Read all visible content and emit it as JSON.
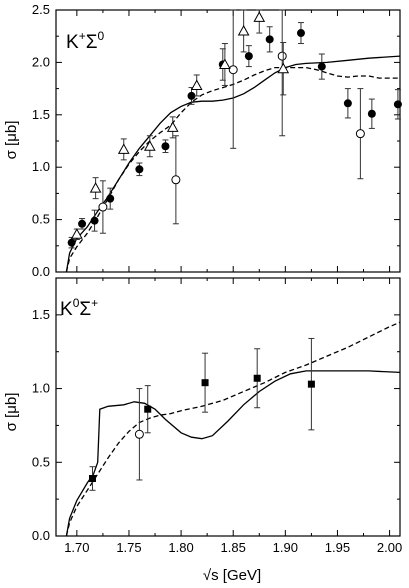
{
  "xlabel": "√s [GeV]",
  "chart_data": [
    {
      "type": "scatter",
      "title": "",
      "panel_label": {
        "base": "K",
        "sup1": "+",
        "mid": "Σ",
        "sup2": "0"
      },
      "xlabel": "√s [GeV]",
      "ylabel": "σ [μb]",
      "xlim": [
        1.68,
        2.01
      ],
      "ylim": [
        0.0,
        2.5
      ],
      "xticks": [
        "1.70",
        "1.75",
        "1.80",
        "1.85",
        "1.90",
        "1.95",
        "2.00"
      ],
      "yticks": [
        "0.0",
        "0.5",
        "1.0",
        "1.5",
        "2.0",
        "2.5"
      ],
      "ytick_values": [
        0.0,
        0.5,
        1.0,
        1.5,
        2.0,
        2.5
      ],
      "series": [
        {
          "marker": "filled-circle",
          "points": [
            {
              "x": 1.695,
              "y": 0.28,
              "err": 0.05
            },
            {
              "x": 1.705,
              "y": 0.46,
              "err": 0.05
            },
            {
              "x": 1.717,
              "y": 0.49,
              "err": 0.1
            },
            {
              "x": 1.732,
              "y": 0.7,
              "err": 0.1
            },
            {
              "x": 1.76,
              "y": 0.98,
              "err": 0.06
            },
            {
              "x": 1.785,
              "y": 1.2,
              "err": 0.06
            },
            {
              "x": 1.81,
              "y": 1.68,
              "err": 0.08
            },
            {
              "x": 1.84,
              "y": 1.98,
              "err": 0.15
            },
            {
              "x": 1.865,
              "y": 2.06,
              "err": 0.1
            },
            {
              "x": 1.885,
              "y": 2.22,
              "err": 0.12
            },
            {
              "x": 1.915,
              "y": 2.28,
              "err": 0.1
            },
            {
              "x": 1.935,
              "y": 1.96,
              "err": 0.12
            },
            {
              "x": 1.96,
              "y": 1.61,
              "err": 0.14
            },
            {
              "x": 1.983,
              "y": 1.51,
              "err": 0.14
            },
            {
              "x": 2.008,
              "y": 1.6,
              "err": 0.14
            }
          ]
        },
        {
          "marker": "open-circle",
          "points": [
            {
              "x": 1.725,
              "y": 0.62,
              "err": 0.25
            },
            {
              "x": 1.795,
              "y": 0.88,
              "err": 0.42
            },
            {
              "x": 1.85,
              "y": 1.93,
              "err": 0.75
            },
            {
              "x": 1.897,
              "y": 2.06,
              "err": 0.76
            },
            {
              "x": 1.972,
              "y": 1.32,
              "err": 0.43
            }
          ]
        },
        {
          "marker": "open-triangle",
          "points": [
            {
              "x": 1.7,
              "y": 0.36,
              "err": 0.05
            },
            {
              "x": 1.718,
              "y": 0.8,
              "err": 0.1
            },
            {
              "x": 1.745,
              "y": 1.17,
              "err": 0.1
            },
            {
              "x": 1.77,
              "y": 1.2,
              "err": 0.1
            },
            {
              "x": 1.792,
              "y": 1.38,
              "err": 0.1
            },
            {
              "x": 1.815,
              "y": 1.78,
              "err": 0.1
            },
            {
              "x": 1.842,
              "y": 1.98,
              "err": 0.2
            },
            {
              "x": 1.86,
              "y": 2.3,
              "err": 0.2
            },
            {
              "x": 1.875,
              "y": 2.43,
              "err": 0.15
            },
            {
              "x": 1.898,
              "y": 1.94,
              "err": 0.25
            }
          ]
        }
      ],
      "curves": [
        {
          "style": "solid",
          "points": [
            [
              1.69,
              0.0
            ],
            [
              1.693,
              0.18
            ],
            [
              1.7,
              0.32
            ],
            [
              1.71,
              0.43
            ],
            [
              1.72,
              0.58
            ],
            [
              1.73,
              0.72
            ],
            [
              1.74,
              0.88
            ],
            [
              1.75,
              1.04
            ],
            [
              1.76,
              1.18
            ],
            [
              1.77,
              1.3
            ],
            [
              1.78,
              1.42
            ],
            [
              1.79,
              1.52
            ],
            [
              1.8,
              1.58
            ],
            [
              1.81,
              1.62
            ],
            [
              1.82,
              1.63
            ],
            [
              1.83,
              1.63
            ],
            [
              1.84,
              1.64
            ],
            [
              1.85,
              1.66
            ],
            [
              1.86,
              1.7
            ],
            [
              1.87,
              1.76
            ],
            [
              1.88,
              1.83
            ],
            [
              1.89,
              1.9
            ],
            [
              1.9,
              1.95
            ],
            [
              1.91,
              1.98
            ],
            [
              1.92,
              1.99
            ],
            [
              1.94,
              2.0
            ],
            [
              1.96,
              2.02
            ],
            [
              1.98,
              2.04
            ],
            [
              2.01,
              2.06
            ]
          ]
        },
        {
          "style": "dashed",
          "points": [
            [
              1.69,
              0.0
            ],
            [
              1.693,
              0.13
            ],
            [
              1.7,
              0.24
            ],
            [
              1.71,
              0.37
            ],
            [
              1.72,
              0.53
            ],
            [
              1.73,
              0.7
            ],
            [
              1.74,
              0.88
            ],
            [
              1.75,
              1.03
            ],
            [
              1.76,
              1.15
            ],
            [
              1.77,
              1.25
            ],
            [
              1.78,
              1.33
            ],
            [
              1.79,
              1.4
            ],
            [
              1.8,
              1.52
            ],
            [
              1.81,
              1.62
            ],
            [
              1.82,
              1.69
            ],
            [
              1.83,
              1.73
            ],
            [
              1.84,
              1.76
            ],
            [
              1.85,
              1.79
            ],
            [
              1.86,
              1.83
            ],
            [
              1.87,
              1.88
            ],
            [
              1.88,
              1.92
            ],
            [
              1.89,
              1.95
            ],
            [
              1.9,
              1.95
            ],
            [
              1.91,
              1.95
            ],
            [
              1.92,
              1.95
            ],
            [
              1.93,
              1.93
            ],
            [
              1.94,
              1.9
            ],
            [
              1.95,
              1.87
            ],
            [
              1.96,
              1.86
            ],
            [
              1.97,
              1.87
            ],
            [
              1.98,
              1.87
            ],
            [
              1.99,
              1.85
            ],
            [
              2.01,
              1.85
            ]
          ]
        }
      ]
    },
    {
      "type": "scatter",
      "title": "",
      "panel_label": {
        "base": "K",
        "sup1": "0",
        "mid": "Σ",
        "sup2": "+"
      },
      "xlabel": "√s [GeV]",
      "ylabel": "σ [μb]",
      "xlim": [
        1.68,
        2.01
      ],
      "ylim": [
        0.0,
        1.75
      ],
      "xticks": [
        "1.70",
        "1.75",
        "1.80",
        "1.85",
        "1.90",
        "1.95",
        "2.00"
      ],
      "yticks": [
        "0.0",
        "0.5",
        "1.0",
        "1.5"
      ],
      "ytick_values": [
        0.0,
        0.5,
        1.0,
        1.5
      ],
      "series": [
        {
          "marker": "filled-square",
          "points": [
            {
              "x": 1.715,
              "y": 0.39,
              "err": 0.08
            },
            {
              "x": 1.768,
              "y": 0.86,
              "err": 0.16
            },
            {
              "x": 1.823,
              "y": 1.04,
              "err": 0.2
            },
            {
              "x": 1.873,
              "y": 1.07,
              "err": 0.2
            },
            {
              "x": 1.925,
              "y": 1.03,
              "err": 0.31
            }
          ]
        },
        {
          "marker": "open-circle",
          "points": [
            {
              "x": 1.76,
              "y": 0.69,
              "err": 0.31
            }
          ]
        }
      ],
      "curves": [
        {
          "style": "solid",
          "points": [
            [
              1.69,
              0.0
            ],
            [
              1.693,
              0.12
            ],
            [
              1.7,
              0.24
            ],
            [
              1.71,
              0.36
            ],
            [
              1.716,
              0.42
            ],
            [
              1.72,
              0.5
            ],
            [
              1.722,
              0.86
            ],
            [
              1.73,
              0.88
            ],
            [
              1.745,
              0.89
            ],
            [
              1.755,
              0.91
            ],
            [
              1.765,
              0.9
            ],
            [
              1.775,
              0.86
            ],
            [
              1.785,
              0.79
            ],
            [
              1.8,
              0.7
            ],
            [
              1.81,
              0.67
            ],
            [
              1.82,
              0.66
            ],
            [
              1.83,
              0.68
            ],
            [
              1.845,
              0.78
            ],
            [
              1.86,
              0.89
            ],
            [
              1.875,
              0.98
            ],
            [
              1.89,
              1.05
            ],
            [
              1.905,
              1.1
            ],
            [
              1.92,
              1.12
            ],
            [
              1.94,
              1.12
            ],
            [
              1.96,
              1.12
            ],
            [
              1.98,
              1.12
            ],
            [
              2.01,
              1.11
            ]
          ]
        },
        {
          "style": "dashed",
          "points": [
            [
              1.69,
              0.0
            ],
            [
              1.693,
              0.09
            ],
            [
              1.7,
              0.2
            ],
            [
              1.71,
              0.31
            ],
            [
              1.72,
              0.42
            ],
            [
              1.73,
              0.53
            ],
            [
              1.74,
              0.63
            ],
            [
              1.75,
              0.71
            ],
            [
              1.76,
              0.77
            ],
            [
              1.77,
              0.8
            ],
            [
              1.78,
              0.82
            ],
            [
              1.79,
              0.83
            ],
            [
              1.8,
              0.85
            ],
            [
              1.82,
              0.88
            ],
            [
              1.84,
              0.92
            ],
            [
              1.86,
              0.98
            ],
            [
              1.88,
              1.04
            ],
            [
              1.9,
              1.11
            ],
            [
              1.92,
              1.16
            ],
            [
              1.94,
              1.22
            ],
            [
              1.96,
              1.28
            ],
            [
              1.98,
              1.35
            ],
            [
              2.0,
              1.42
            ],
            [
              2.01,
              1.45
            ]
          ]
        }
      ]
    }
  ]
}
